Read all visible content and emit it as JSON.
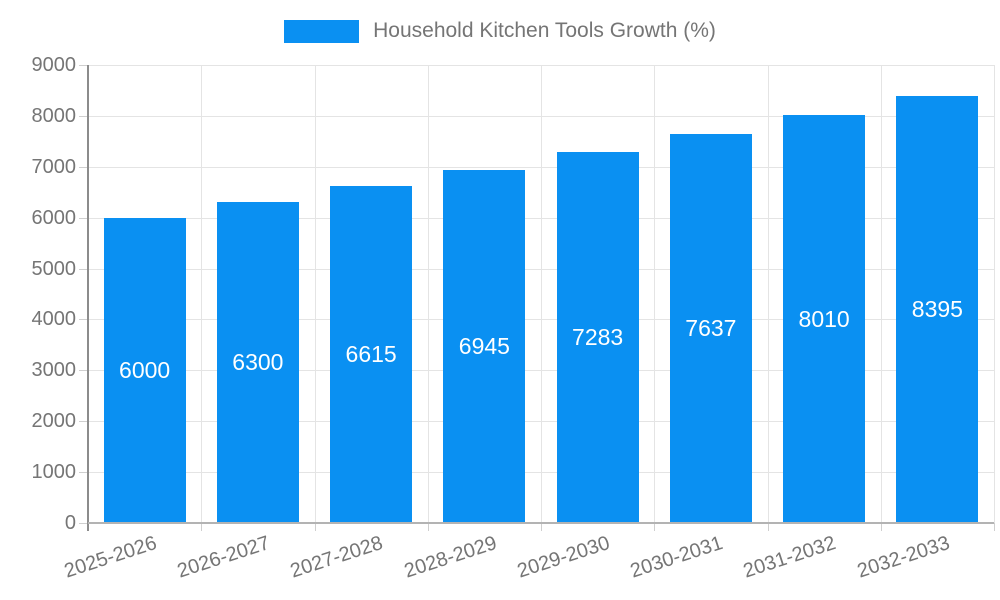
{
  "legend": {
    "label": "Household Kitchen Tools Growth (%)"
  },
  "chart_data": {
    "type": "bar",
    "title": "Household Kitchen Tools Growth (%)",
    "legend_position": "top",
    "categories": [
      "2025-2026",
      "2026-2027",
      "2027-2028",
      "2028-2029",
      "2029-2030",
      "2030-2031",
      "2031-2032",
      "2032-2033"
    ],
    "series": [
      {
        "name": "Household Kitchen Tools Growth (%)",
        "values": [
          6000,
          6300,
          6615,
          6945,
          7283,
          7637,
          8010,
          8395
        ]
      }
    ],
    "value_labels": [
      "6000",
      "6300",
      "6615",
      "6945",
      "7283",
      "7637",
      "8010",
      "8395"
    ],
    "xlabel": "",
    "ylabel": "",
    "ylim": [
      0,
      9000
    ],
    "yticks": [
      0,
      1000,
      2000,
      3000,
      4000,
      5000,
      6000,
      7000,
      8000,
      9000
    ],
    "grid": true,
    "colors": {
      "bar": "#0a90f2",
      "axis_text": "#757575",
      "value_text": "#ffffff",
      "gridline": "#e4e4e4",
      "tick": "#cfcfcf",
      "x_axis_line": "#b3b3b3",
      "y_axis_line": "#8c8c8c",
      "background": "#ffffff"
    }
  }
}
